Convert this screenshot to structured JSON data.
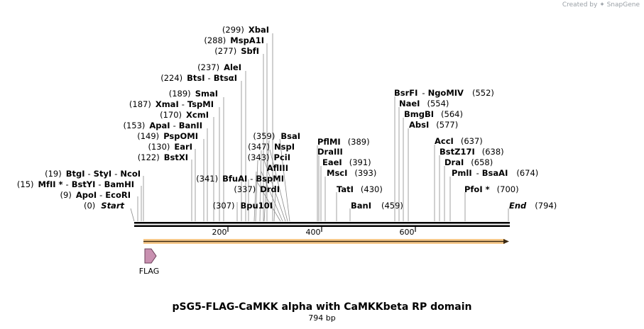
{
  "credit": "Created by ✦ SnapGene",
  "title": "pSG5-FLAG-CaMKK alpha with CaMKKbeta RP domain",
  "length_label": "794 bp",
  "ruler_ticks": [
    "200",
    "400",
    "600"
  ],
  "feature": {
    "label": "FLAG"
  },
  "sites": [
    {
      "pos": "(299)",
      "names": [
        "XbaI"
      ]
    },
    {
      "pos": "(288)",
      "names": [
        "MspA1I"
      ]
    },
    {
      "pos": "(277)",
      "names": [
        "SbfI"
      ]
    },
    {
      "pos": "(237)",
      "names": [
        "AleI"
      ]
    },
    {
      "pos": "(224)",
      "names": [
        "BtsI",
        "BtsαI"
      ]
    },
    {
      "pos": "(189)",
      "names": [
        "SmaI"
      ]
    },
    {
      "pos": "(187)",
      "names": [
        "XmaI",
        "TspMI"
      ]
    },
    {
      "pos": "(170)",
      "names": [
        "XcmI"
      ]
    },
    {
      "pos": "(153)",
      "names": [
        "ApaI",
        "BanII"
      ]
    },
    {
      "pos": "(149)",
      "names": [
        "PspOMI"
      ]
    },
    {
      "pos": "(130)",
      "names": [
        "EarI"
      ]
    },
    {
      "pos": "(122)",
      "names": [
        "BstXI"
      ]
    },
    {
      "pos": "(19)",
      "names": [
        "BtgI",
        "StyI",
        "NcoI"
      ]
    },
    {
      "pos": "(15)",
      "names": [
        "MfII *",
        "BstYI",
        "BamHI"
      ]
    },
    {
      "pos": "(9)",
      "names": [
        "ApoI",
        "EcoRI"
      ]
    },
    {
      "pos": "(0)",
      "names": [
        "Start"
      ],
      "italic": true
    },
    {
      "pos": "(341)",
      "names": [
        "BfuAI",
        "BspMI"
      ]
    },
    {
      "pos": "(337)",
      "names": [
        "DrdI"
      ]
    },
    {
      "pos": "(307)",
      "names": [
        "Bpu10I"
      ]
    },
    {
      "pos": "(359)",
      "names": [
        "BsaI"
      ]
    },
    {
      "pos": "(347)",
      "names": [
        "NspI"
      ]
    },
    {
      "pos": "(343)",
      "names": [
        "PciI"
      ]
    },
    {
      "pos": "",
      "names": [
        "AflIII"
      ]
    },
    {
      "pos": "(389)",
      "names": [
        "PflMI"
      ]
    },
    {
      "pos": "",
      "names": [
        "DraIII"
      ]
    },
    {
      "pos": "(391)",
      "names": [
        "EaeI"
      ]
    },
    {
      "pos": "(393)",
      "names": [
        "MscI"
      ]
    },
    {
      "pos": "(430)",
      "names": [
        "TatI"
      ]
    },
    {
      "pos": "(459)",
      "names": [
        "BanI"
      ]
    },
    {
      "pos": "(552)",
      "names": [
        "BsrFI",
        "NgoMIV"
      ]
    },
    {
      "pos": "(554)",
      "names": [
        "NaeI"
      ]
    },
    {
      "pos": "(564)",
      "names": [
        "BmgBI"
      ]
    },
    {
      "pos": "(577)",
      "names": [
        "AbsI"
      ]
    },
    {
      "pos": "(637)",
      "names": [
        "AccI"
      ]
    },
    {
      "pos": "(638)",
      "names": [
        "BstZ17I"
      ]
    },
    {
      "pos": "(658)",
      "names": [
        "DraI"
      ]
    },
    {
      "pos": "(674)",
      "names": [
        "PmlI",
        "BsaAI"
      ]
    },
    {
      "pos": "(700)",
      "names": [
        "PfoI *"
      ]
    },
    {
      "pos": "(794)",
      "names": [
        "End"
      ],
      "italic": true
    }
  ]
}
